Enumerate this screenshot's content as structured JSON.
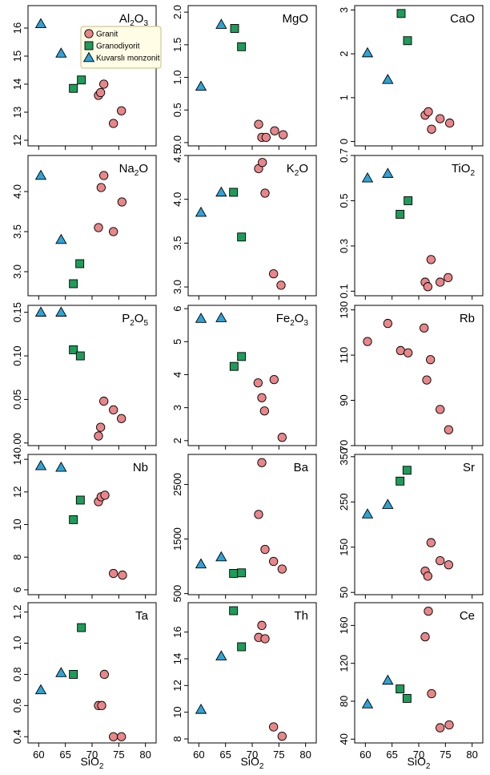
{
  "xlabel": "SiO",
  "xlabel_sub": "2",
  "groups": [
    {
      "name": "Granit",
      "marker": "circle",
      "color": "#e8868a"
    },
    {
      "name": "Granodiyorit",
      "marker": "square",
      "color": "#1f9b5a"
    },
    {
      "name": "Kuvarslı monzonit",
      "marker": "triangle",
      "color": "#2ea3d6"
    }
  ],
  "chart_data": [
    {
      "type": "scatter",
      "title": "Al",
      "sub": "2",
      "title2": "O",
      "sub2": "3",
      "xlim": [
        58,
        82
      ],
      "xticks": [
        60,
        65,
        70,
        75,
        80
      ],
      "ylim": [
        11.8,
        16.8
      ],
      "yticks": [
        12,
        13,
        14,
        15,
        16
      ],
      "series": [
        {
          "group": 0,
          "points": [
            [
              71.2,
              13.6
            ],
            [
              71.6,
              13.7
            ],
            [
              72.2,
              14.0
            ],
            [
              74.0,
              12.6
            ],
            [
              75.5,
              13.05
            ]
          ]
        },
        {
          "group": 1,
          "points": [
            [
              66.5,
              13.85
            ],
            [
              68.0,
              14.15
            ]
          ]
        },
        {
          "group": 2,
          "points": [
            [
              60.4,
              16.15
            ],
            [
              64.2,
              15.1
            ]
          ]
        }
      ]
    },
    {
      "type": "scatter",
      "title": "MgO",
      "xlim": [
        58,
        82
      ],
      "xticks": [
        60,
        65,
        70,
        75,
        80
      ],
      "ylim": [
        -0.05,
        2.1
      ],
      "yticks": [
        0.0,
        0.5,
        1.0,
        1.5,
        2.0
      ],
      "series": [
        {
          "group": 0,
          "points": [
            [
              71.2,
              0.28
            ],
            [
              71.8,
              0.08
            ],
            [
              72.6,
              0.08
            ],
            [
              74.2,
              0.18
            ],
            [
              75.8,
              0.12
            ]
          ]
        },
        {
          "group": 1,
          "points": [
            [
              66.7,
              1.75
            ],
            [
              68.0,
              1.47
            ]
          ]
        },
        {
          "group": 2,
          "points": [
            [
              60.4,
              0.86
            ],
            [
              64.2,
              1.81
            ]
          ]
        }
      ]
    },
    {
      "type": "scatter",
      "title": "CaO",
      "xlim": [
        58,
        82
      ],
      "xticks": [
        60,
        65,
        70,
        75,
        80
      ],
      "ylim": [
        -0.1,
        3.1
      ],
      "yticks": [
        0.0,
        1.0,
        2.0,
        3.0
      ],
      "series": [
        {
          "group": 0,
          "points": [
            [
              71.2,
              0.6
            ],
            [
              71.8,
              0.68
            ],
            [
              72.4,
              0.28
            ],
            [
              74.0,
              0.52
            ],
            [
              75.8,
              0.42
            ]
          ]
        },
        {
          "group": 1,
          "points": [
            [
              66.7,
              2.92
            ],
            [
              67.9,
              2.3
            ]
          ]
        },
        {
          "group": 2,
          "points": [
            [
              60.4,
              2.02
            ],
            [
              64.2,
              1.41
            ]
          ]
        }
      ]
    },
    {
      "type": "scatter",
      "title": "Na",
      "sub": "2",
      "title2": "O",
      "xlim": [
        58,
        82
      ],
      "xticks": [
        60,
        65,
        70,
        75,
        80
      ],
      "ylim": [
        2.7,
        4.45
      ],
      "yticks": [
        3.0,
        3.5,
        4.0
      ],
      "series": [
        {
          "group": 0,
          "points": [
            [
              71.2,
              3.55
            ],
            [
              71.7,
              4.05
            ],
            [
              72.2,
              4.2
            ],
            [
              74.0,
              3.5
            ],
            [
              75.6,
              3.87
            ]
          ]
        },
        {
          "group": 1,
          "points": [
            [
              66.5,
              2.85
            ],
            [
              67.7,
              3.1
            ]
          ]
        },
        {
          "group": 2,
          "points": [
            [
              60.4,
              4.2
            ],
            [
              64.2,
              3.4
            ]
          ]
        }
      ]
    },
    {
      "type": "scatter",
      "title": "K",
      "sub": "2",
      "title2": "O",
      "xlim": [
        58,
        82
      ],
      "xticks": [
        60,
        65,
        70,
        75,
        80
      ],
      "ylim": [
        2.9,
        4.5
      ],
      "yticks": [
        3.0,
        3.5,
        4.0,
        4.5
      ],
      "series": [
        {
          "group": 0,
          "points": [
            [
              71.2,
              4.35
            ],
            [
              71.9,
              4.42
            ],
            [
              72.4,
              4.07
            ],
            [
              74.0,
              3.15
            ],
            [
              75.4,
              3.02
            ]
          ]
        },
        {
          "group": 1,
          "points": [
            [
              66.5,
              4.08
            ],
            [
              68.0,
              3.57
            ]
          ]
        },
        {
          "group": 2,
          "points": [
            [
              60.4,
              3.85
            ],
            [
              64.2,
              4.08
            ]
          ]
        }
      ]
    },
    {
      "type": "scatter",
      "title": "TiO",
      "sub": "2",
      "xlim": [
        58,
        82
      ],
      "xticks": [
        60,
        65,
        70,
        75,
        80
      ],
      "ylim": [
        0.08,
        0.7
      ],
      "yticks": [
        0.1,
        0.3,
        0.5,
        0.7
      ],
      "series": [
        {
          "group": 0,
          "points": [
            [
              71.2,
              0.14
            ],
            [
              71.7,
              0.12
            ],
            [
              72.3,
              0.24
            ],
            [
              74.0,
              0.14
            ],
            [
              75.5,
              0.16
            ]
          ]
        },
        {
          "group": 1,
          "points": [
            [
              66.5,
              0.44
            ],
            [
              68.0,
              0.5
            ]
          ]
        },
        {
          "group": 2,
          "points": [
            [
              60.4,
              0.6
            ],
            [
              64.2,
              0.62
            ]
          ]
        }
      ]
    },
    {
      "type": "scatter",
      "title": "P",
      "sub": "2",
      "title2": "O",
      "sub2": "5",
      "xlim": [
        58,
        82
      ],
      "xticks": [
        60,
        65,
        70,
        75,
        80
      ],
      "ylim": [
        -0.003,
        0.158
      ],
      "yticks": [
        0.0,
        0.05,
        0.1,
        0.15
      ],
      "series": [
        {
          "group": 0,
          "points": [
            [
              71.2,
              0.008
            ],
            [
              71.6,
              0.018
            ],
            [
              72.2,
              0.048
            ],
            [
              74.0,
              0.038
            ],
            [
              75.5,
              0.028
            ]
          ]
        },
        {
          "group": 1,
          "points": [
            [
              66.5,
              0.107
            ],
            [
              67.8,
              0.1
            ]
          ]
        },
        {
          "group": 2,
          "points": [
            [
              60.4,
              0.15
            ],
            [
              64.2,
              0.15
            ]
          ]
        }
      ]
    },
    {
      "type": "scatter",
      "title": "Fe",
      "sub": "2",
      "title2": "O",
      "sub2": "3",
      "xlim": [
        58,
        82
      ],
      "xticks": [
        60,
        65,
        70,
        75,
        80
      ],
      "ylim": [
        1.85,
        6.1
      ],
      "yticks": [
        2,
        3,
        4,
        5,
        6
      ],
      "series": [
        {
          "group": 0,
          "points": [
            [
              71.1,
              3.75
            ],
            [
              71.8,
              3.3
            ],
            [
              72.3,
              2.9
            ],
            [
              74.1,
              3.85
            ],
            [
              75.6,
              2.1
            ]
          ]
        },
        {
          "group": 1,
          "points": [
            [
              66.6,
              4.25
            ],
            [
              68.0,
              4.55
            ]
          ]
        },
        {
          "group": 2,
          "points": [
            [
              60.4,
              5.7
            ],
            [
              64.2,
              5.72
            ]
          ]
        }
      ]
    },
    {
      "type": "scatter",
      "title": "Rb",
      "xlim": [
        58,
        82
      ],
      "xticks": [
        60,
        65,
        70,
        75,
        80
      ],
      "ylim": [
        70,
        132
      ],
      "yticks": [
        70,
        90,
        110,
        130
      ],
      "series": [
        {
          "group": 0,
          "points": [
            [
              60.4,
              116
            ],
            [
              64.2,
              124
            ],
            [
              66.6,
              112
            ],
            [
              68.0,
              111
            ],
            [
              71.0,
              122
            ],
            [
              71.5,
              99
            ],
            [
              72.2,
              108
            ],
            [
              74.0,
              86
            ],
            [
              75.6,
              77
            ]
          ]
        }
      ]
    },
    {
      "type": "scatter",
      "title": "Nb",
      "xlim": [
        58,
        82
      ],
      "xticks": [
        60,
        65,
        70,
        75,
        80
      ],
      "ylim": [
        5.7,
        14.3
      ],
      "yticks": [
        6,
        8,
        10,
        12,
        14
      ],
      "series": [
        {
          "group": 0,
          "points": [
            [
              71.2,
              11.4
            ],
            [
              71.7,
              11.7
            ],
            [
              72.4,
              11.8
            ],
            [
              74.0,
              7.0
            ],
            [
              75.7,
              6.9
            ]
          ]
        },
        {
          "group": 1,
          "points": [
            [
              66.5,
              10.3
            ],
            [
              67.8,
              11.5
            ]
          ]
        },
        {
          "group": 2,
          "points": [
            [
              60.4,
              13.6
            ],
            [
              64.2,
              13.5
            ]
          ]
        }
      ]
    },
    {
      "type": "scatter",
      "title": "Ba",
      "xlim": [
        58,
        82
      ],
      "xticks": [
        60,
        65,
        70,
        75,
        80
      ],
      "ylim": [
        480,
        3050
      ],
      "yticks": [
        500,
        1500,
        2500
      ],
      "series": [
        {
          "group": 0,
          "points": [
            [
              71.2,
              1950
            ],
            [
              71.8,
              2900
            ],
            [
              72.4,
              1310
            ],
            [
              74.0,
              1090
            ],
            [
              75.6,
              950
            ]
          ]
        },
        {
          "group": 1,
          "points": [
            [
              66.5,
              870
            ],
            [
              68.0,
              880
            ]
          ]
        },
        {
          "group": 2,
          "points": [
            [
              60.4,
              1040
            ],
            [
              64.2,
              1170
            ]
          ]
        }
      ]
    },
    {
      "type": "scatter",
      "title": "Sr",
      "xlim": [
        58,
        82
      ],
      "xticks": [
        60,
        65,
        70,
        75,
        80
      ],
      "ylim": [
        45,
        355
      ],
      "yticks": [
        50,
        150,
        250,
        350
      ],
      "series": [
        {
          "group": 0,
          "points": [
            [
              71.2,
              97
            ],
            [
              71.7,
              86
            ],
            [
              72.3,
              160
            ],
            [
              74.0,
              120
            ],
            [
              75.6,
              111
            ]
          ]
        },
        {
          "group": 1,
          "points": [
            [
              66.5,
              296
            ],
            [
              67.8,
              320
            ]
          ]
        },
        {
          "group": 2,
          "points": [
            [
              60.4,
              223
            ],
            [
              64.2,
              244
            ]
          ]
        }
      ]
    },
    {
      "type": "scatter",
      "title": "Ta",
      "xlim": [
        58,
        82
      ],
      "xticks": [
        60,
        65,
        70,
        75,
        80
      ],
      "ylim": [
        0.36,
        1.26
      ],
      "yticks": [
        0.4,
        0.6,
        0.8,
        1.0,
        1.2
      ],
      "series": [
        {
          "group": 0,
          "points": [
            [
              71.2,
              0.6
            ],
            [
              71.8,
              0.6
            ],
            [
              72.3,
              0.8
            ],
            [
              74.0,
              0.4
            ],
            [
              75.5,
              0.4
            ]
          ]
        },
        {
          "group": 1,
          "points": [
            [
              66.5,
              0.8
            ],
            [
              68.0,
              1.1
            ]
          ]
        },
        {
          "group": 2,
          "points": [
            [
              60.4,
              0.7
            ],
            [
              64.2,
              0.81
            ]
          ]
        }
      ]
    },
    {
      "type": "scatter",
      "title": "Th",
      "xlim": [
        58,
        82
      ],
      "xticks": [
        60,
        65,
        70,
        75,
        80
      ],
      "ylim": [
        7.7,
        18.2
      ],
      "yticks": [
        8,
        10,
        12,
        14,
        16
      ],
      "series": [
        {
          "group": 0,
          "points": [
            [
              71.2,
              15.6
            ],
            [
              71.8,
              16.5
            ],
            [
              72.4,
              15.5
            ],
            [
              74.0,
              8.9
            ],
            [
              75.6,
              8.2
            ]
          ]
        },
        {
          "group": 1,
          "points": [
            [
              66.5,
              17.6
            ],
            [
              68.0,
              14.9
            ]
          ]
        },
        {
          "group": 2,
          "points": [
            [
              60.4,
              10.2
            ],
            [
              64.2,
              14.2
            ]
          ]
        }
      ]
    },
    {
      "type": "scatter",
      "title": "Ce",
      "xlim": [
        58,
        82
      ],
      "xticks": [
        60,
        65,
        70,
        75,
        80
      ],
      "ylim": [
        36,
        184
      ],
      "yticks": [
        40,
        80,
        120,
        160
      ],
      "series": [
        {
          "group": 0,
          "points": [
            [
              71.2,
              148
            ],
            [
              71.8,
              175
            ],
            [
              72.4,
              88
            ],
            [
              74.0,
              52
            ],
            [
              75.7,
              55
            ]
          ]
        },
        {
          "group": 1,
          "points": [
            [
              66.5,
              93
            ],
            [
              67.8,
              83
            ]
          ]
        },
        {
          "group": 2,
          "points": [
            [
              60.4,
              77
            ],
            [
              64.2,
              102
            ]
          ]
        }
      ]
    }
  ]
}
